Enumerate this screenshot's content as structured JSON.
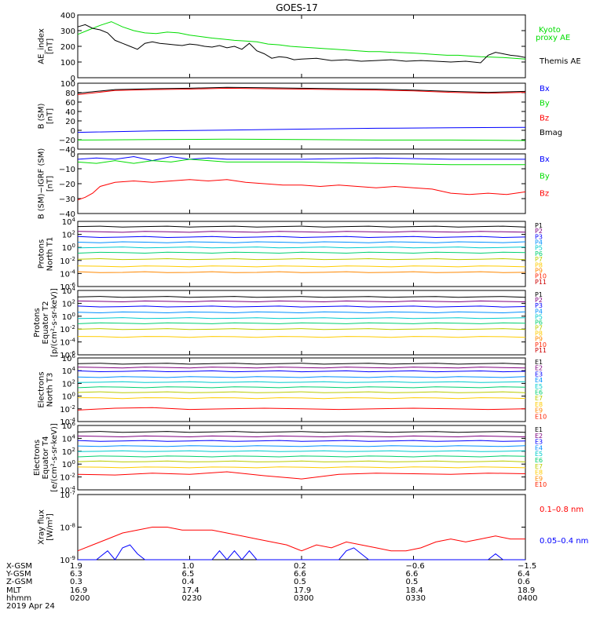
{
  "title": "GOES-17",
  "colors": {
    "black": "#000000",
    "blue": "#0000ff",
    "green": "#00dd00",
    "red": "#ff0000",
    "p1": "#000000",
    "p2": "#7f007f",
    "p3": "#0000ff",
    "p4": "#0090ff",
    "p5": "#00cccc",
    "p6": "#00d070",
    "p7": "#bbcc00",
    "p8": "#ffcc00",
    "p9": "#ff8800",
    "p10": "#ff2200",
    "p11": "#cc0000"
  },
  "chart_data": [
    {
      "type": "line",
      "panel": "ae",
      "ylabel": [
        "AE_index",
        "[nT]"
      ],
      "yticks": [
        "400",
        "300",
        "200",
        "100",
        "0"
      ],
      "ylim": [
        0,
        420
      ],
      "legend": [
        {
          "label": "Kyoto",
          "color": "#00dd00"
        },
        {
          "label": "proxy AE",
          "color": "#00dd00"
        },
        {
          "label": "Themis AE",
          "color": "#000000"
        }
      ],
      "series": [
        {
          "name": "Kyoto proxy AE",
          "color": "#00dd00",
          "x": [
            0,
            3,
            6,
            9,
            12,
            15,
            18,
            21,
            24,
            27,
            30,
            33,
            36,
            39,
            42,
            45,
            48,
            51,
            54,
            57,
            60,
            63,
            66,
            69,
            72,
            75,
            78,
            81,
            84,
            87,
            90,
            93,
            96,
            99,
            102,
            105,
            108,
            111,
            114,
            117,
            120
          ],
          "y": [
            290,
            320,
            350,
            375,
            340,
            315,
            300,
            295,
            305,
            300,
            285,
            275,
            265,
            258,
            250,
            245,
            240,
            225,
            220,
            210,
            205,
            200,
            195,
            190,
            185,
            180,
            175,
            175,
            170,
            168,
            165,
            160,
            155,
            150,
            150,
            145,
            140,
            138,
            135,
            130,
            125
          ]
        },
        {
          "name": "Themis AE",
          "color": "#000000",
          "x": [
            0,
            2,
            4,
            6,
            8,
            10,
            12,
            14,
            16,
            18,
            20,
            22,
            24,
            26,
            28,
            30,
            32,
            34,
            36,
            38,
            40,
            42,
            44,
            46,
            48,
            50,
            52,
            54,
            56,
            58,
            60,
            64,
            68,
            72,
            76,
            80,
            84,
            88,
            92,
            96,
            100,
            104,
            108,
            110,
            112,
            114,
            116,
            118,
            120
          ],
          "y": [
            340,
            355,
            330,
            320,
            300,
            250,
            230,
            210,
            190,
            230,
            240,
            230,
            225,
            220,
            215,
            225,
            220,
            210,
            205,
            215,
            200,
            210,
            190,
            230,
            180,
            160,
            130,
            140,
            135,
            120,
            125,
            130,
            115,
            120,
            110,
            115,
            120,
            110,
            115,
            110,
            105,
            110,
            100,
            150,
            170,
            160,
            150,
            145,
            135
          ]
        }
      ]
    },
    {
      "type": "line",
      "panel": "b-sm",
      "ylabel": [
        "B (SM)",
        "[nT]"
      ],
      "yticks": [
        "100",
        "80",
        "60",
        "40",
        "20",
        "0",
        "−20",
        "−40"
      ],
      "ylim": [
        -45,
        100
      ],
      "legend": [
        {
          "label": "Bx",
          "color": "#0000ff"
        },
        {
          "label": "By",
          "color": "#00dd00"
        },
        {
          "label": "Bz",
          "color": "#ff0000"
        },
        {
          "label": "Bmag",
          "color": "#000000"
        }
      ],
      "series": [
        {
          "name": "Bz",
          "color": "#ff0000",
          "x": [
            0,
            10,
            20,
            30,
            40,
            50,
            60,
            70,
            80,
            90,
            100,
            110,
            120
          ],
          "y": [
            75,
            84,
            86,
            87,
            89,
            88,
            87,
            86,
            85,
            83,
            80,
            78,
            80
          ]
        },
        {
          "name": "Bmag",
          "color": "#000000",
          "x": [
            0,
            10,
            20,
            30,
            40,
            50,
            60,
            70,
            80,
            90,
            100,
            110,
            120
          ],
          "y": [
            78,
            86,
            88,
            89,
            91,
            90,
            89,
            88,
            87,
            85,
            82,
            80,
            82
          ]
        },
        {
          "name": "Bx",
          "color": "#0000ff",
          "x": [
            0,
            20,
            40,
            60,
            80,
            100,
            120
          ],
          "y": [
            -8,
            -5,
            -3,
            -1,
            1,
            2,
            3
          ]
        },
        {
          "name": "By",
          "color": "#00dd00",
          "x": [
            0,
            20,
            40,
            60,
            80,
            100,
            120
          ],
          "y": [
            -25,
            -24,
            -23,
            -24,
            -25,
            -25,
            -26
          ]
        }
      ]
    },
    {
      "type": "line",
      "panel": "b-igrf",
      "ylabel": [
        "B (SM)−IGRF (SM)",
        "[nT]"
      ],
      "yticks": [
        "0",
        "−10",
        "−20",
        "−30",
        "−40"
      ],
      "ylim": [
        -40,
        4
      ],
      "legend": [
        {
          "label": "Bx",
          "color": "#0000ff"
        },
        {
          "label": "By",
          "color": "#00dd00"
        },
        {
          "label": "Bz",
          "color": "#ff0000"
        }
      ],
      "series": [
        {
          "name": "Bz",
          "color": "#ff0000",
          "x": [
            0,
            2,
            4,
            6,
            10,
            15,
            20,
            25,
            30,
            35,
            40,
            45,
            50,
            55,
            60,
            65,
            70,
            75,
            80,
            85,
            90,
            95,
            100,
            105,
            110,
            115,
            120
          ],
          "y": [
            -30,
            -28,
            -25,
            -20,
            -17,
            -16,
            -17,
            -16,
            -15,
            -16,
            -15,
            -17,
            -18,
            -19,
            -19,
            -20,
            -19,
            -20,
            -21,
            -20,
            -21,
            -22,
            -25,
            -26,
            -25,
            -26,
            -24
          ]
        },
        {
          "name": "Bx",
          "color": "#0000ff",
          "x": [
            0,
            5,
            10,
            15,
            20,
            25,
            30,
            35,
            40,
            60,
            80,
            100,
            120
          ],
          "y": [
            0,
            1,
            0,
            2,
            -1,
            2,
            0,
            1,
            0,
            0,
            1,
            0,
            0
          ]
        },
        {
          "name": "By",
          "color": "#00dd00",
          "x": [
            0,
            5,
            10,
            15,
            20,
            25,
            30,
            35,
            40,
            60,
            80,
            100,
            120
          ],
          "y": [
            -2,
            -3,
            -1,
            -3,
            -1,
            -2,
            0,
            -1,
            -2,
            -2,
            -3,
            -4,
            -4
          ]
        }
      ]
    },
    {
      "type": "line",
      "panel": "protons-t1",
      "ylabel": [
        "Protons",
        "North T1"
      ],
      "yticks": [
        "10^4",
        "10^2",
        "10^0",
        "10^-2",
        "10^-4",
        "10^-6"
      ],
      "ylim": [
        -6,
        4
      ],
      "yscale": "log10",
      "legend": [
        "P1",
        "P2",
        "P3",
        "P4",
        "P5",
        "P6",
        "P7",
        "P8",
        "P9",
        "P10",
        "P11"
      ],
      "levels": [
        3.2,
        2.4,
        1.6,
        0.8,
        0.0,
        -0.8,
        -1.8,
        -2.9,
        -3.8
      ],
      "series_colors": [
        "#000000",
        "#7f007f",
        "#0000ff",
        "#0090ff",
        "#00cccc",
        "#00d070",
        "#bbcc00",
        "#ffcc00",
        "#ff8800"
      ]
    },
    {
      "type": "line",
      "panel": "protons-t2",
      "ylabel": [
        "Protons",
        "Equator T2",
        "[p/(cm²-s-sr-keV)]"
      ],
      "yticks": [
        "10^4",
        "10^2",
        "10^0",
        "10^-2",
        "10^-4",
        "10^-6"
      ],
      "ylim": [
        -6,
        4
      ],
      "yscale": "log10",
      "legend": [
        "P1",
        "P2",
        "P3",
        "P4",
        "P5",
        "P6",
        "P7",
        "P8",
        "P9",
        "P10",
        "P11"
      ],
      "levels": [
        3.0,
        2.3,
        1.5,
        0.6,
        -0.3,
        -1.1,
        -2.0,
        -3.2
      ],
      "series_colors": [
        "#000000",
        "#7f007f",
        "#0000ff",
        "#0090ff",
        "#00cccc",
        "#00d070",
        "#bbcc00",
        "#ffcc00"
      ]
    },
    {
      "type": "line",
      "panel": "electrons-t3",
      "ylabel": [
        "Electrons",
        "North T3"
      ],
      "yticks": [
        "10^6",
        "10^4",
        "10^2",
        "10^0",
        "10^-2",
        "10^-4"
      ],
      "ylim": [
        -4,
        6
      ],
      "yscale": "log10",
      "legend": [
        "E1",
        "E2",
        "E3",
        "E4",
        "E5",
        "E6",
        "E7",
        "E8",
        "E9",
        "E10"
      ],
      "levels": [
        5.1,
        4.5,
        3.9,
        3.0,
        2.2,
        1.4,
        0.6,
        -0.3
      ],
      "series_colors": [
        "#000000",
        "#7f007f",
        "#0000ff",
        "#0090ff",
        "#00cccc",
        "#00d070",
        "#bbcc00",
        "#ffcc00"
      ],
      "red_series": {
        "x": [
          0,
          10,
          20,
          30,
          40,
          50,
          60,
          70,
          80,
          90,
          100,
          110,
          120
        ],
        "y": [
          -2.2,
          -1.9,
          -1.8,
          -2.1,
          -2.0,
          -1.9,
          -2.0,
          -2.1,
          -2.0,
          -1.9,
          -2.0,
          -2.1,
          -2.0
        ]
      }
    },
    {
      "type": "line",
      "panel": "electrons-t4",
      "ylabel": [
        "Electrons",
        "Equator T4",
        "[e/(cm²-s-sr-keV)]"
      ],
      "yticks": [
        "10^6",
        "10^4",
        "10^2",
        "10^0",
        "10^-2",
        "10^-4"
      ],
      "ylim": [
        -4,
        6
      ],
      "yscale": "log10",
      "legend": [
        "E1",
        "E2",
        "E3",
        "E4",
        "E5",
        "E6",
        "E7",
        "E8",
        "E9",
        "E10"
      ],
      "levels": [
        5.0,
        4.3,
        3.6,
        2.8,
        2.0,
        1.2,
        0.4,
        -0.5
      ],
      "series_colors": [
        "#000000",
        "#7f007f",
        "#0000ff",
        "#0090ff",
        "#00cccc",
        "#00d070",
        "#bbcc00",
        "#ffcc00"
      ],
      "red_series": {
        "x": [
          0,
          10,
          20,
          30,
          40,
          50,
          60,
          70,
          80,
          90,
          100,
          110,
          120
        ],
        "y": [
          -1.6,
          -1.7,
          -1.4,
          -1.6,
          -1.2,
          -1.8,
          -2.3,
          -1.6,
          -1.4,
          -1.5,
          -1.6,
          -1.4,
          -1.5
        ]
      }
    },
    {
      "type": "line",
      "panel": "xray",
      "ylabel": [
        "Xray flux",
        "[W/m²]"
      ],
      "yticks": [
        "10^-7",
        "10^-8",
        "10^-9"
      ],
      "ylim": [
        -9.2,
        -7.0
      ],
      "yscale": "log10",
      "legend": [
        {
          "label": "0.1–0.8 nm",
          "color": "#ff0000"
        },
        {
          "label": "0.05–0.4 nm",
          "color": "#0000ff"
        }
      ],
      "series": [
        {
          "name": "0.1–0.8 nm",
          "color": "#ff0000",
          "x": [
            0,
            4,
            8,
            12,
            16,
            20,
            24,
            28,
            32,
            36,
            40,
            44,
            48,
            52,
            56,
            60,
            64,
            68,
            72,
            76,
            80,
            84,
            88,
            92,
            96,
            100,
            104,
            108,
            112,
            116,
            120
          ],
          "y": [
            -8.9,
            -8.7,
            -8.5,
            -8.3,
            -8.2,
            -8.1,
            -8.1,
            -8.2,
            -8.2,
            -8.2,
            -8.3,
            -8.4,
            -8.5,
            -8.6,
            -8.7,
            -8.9,
            -8.7,
            -8.8,
            -8.6,
            -8.7,
            -8.8,
            -8.9,
            -8.9,
            -8.8,
            -8.6,
            -8.5,
            -8.6,
            -8.5,
            -8.4,
            -8.5,
            -8.5
          ]
        },
        {
          "name": "0.05–0.4 nm",
          "color": "#0000ff",
          "x": [
            0,
            5,
            8,
            10,
            12,
            14,
            16,
            18,
            20,
            30,
            36,
            38,
            40,
            42,
            44,
            46,
            48,
            60,
            70,
            72,
            74,
            76,
            78,
            80,
            100,
            110,
            112,
            114,
            116,
            120
          ],
          "y": [
            -9.2,
            -9.2,
            -8.9,
            -9.2,
            -8.8,
            -8.7,
            -9.0,
            -9.2,
            -9.2,
            -9.2,
            -9.2,
            -8.9,
            -9.2,
            -8.9,
            -9.2,
            -8.9,
            -9.2,
            -9.2,
            -9.2,
            -8.9,
            -8.8,
            -9.0,
            -9.2,
            -9.2,
            -9.2,
            -9.2,
            -9.0,
            -9.2,
            -9.2,
            -9.2
          ]
        }
      ]
    }
  ],
  "xaxis": {
    "row_labels": [
      "X-GSM",
      "Y-GSM",
      "Z-GSM",
      "MLT",
      "hhmm",
      "2019 Apr 24"
    ],
    "columns": [
      {
        "x": "1.9",
        "y": "6.3",
        "z": "0.3",
        "mlt": "16.9",
        "hhmm": "0200"
      },
      {
        "x": "1.0",
        "y": "6.5",
        "z": "0.4",
        "mlt": "17.4",
        "hhmm": "0230"
      },
      {
        "x": "0.2",
        "y": "6.6",
        "z": "0.5",
        "mlt": "17.9",
        "hhmm": "0300"
      },
      {
        "x": "−0.6",
        "y": "6.6",
        "z": "0.5",
        "mlt": "18.4",
        "hhmm": "0330"
      },
      {
        "x": "−1.5",
        "y": "6.4",
        "z": "0.6",
        "mlt": "18.9",
        "hhmm": "0400"
      }
    ]
  }
}
